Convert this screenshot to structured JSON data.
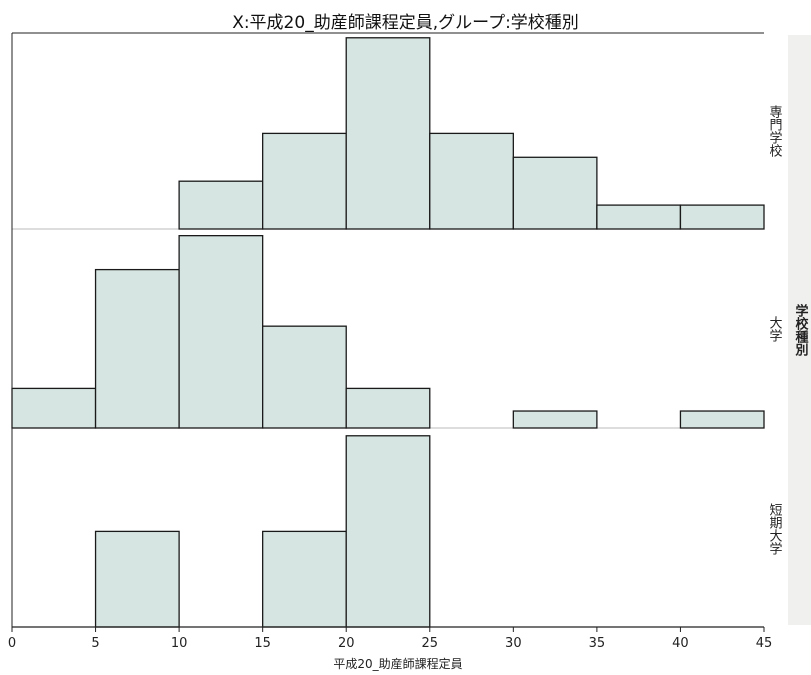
{
  "title": "X:平成20_助産師課程定員,グループ:学校種別",
  "group_label": "学校種別",
  "colors": {
    "bar_fill": "#d6e5e1",
    "bar_stroke": "#1a1a1a",
    "axis": "#222222",
    "background": "#ffffff"
  },
  "chart_data": {
    "type": "bar",
    "title": "X:平成20_助産師課程定員,グループ:学校種別",
    "xlabel": "平成20_助産師課程定員",
    "ylabel": "",
    "xlim": [
      0,
      45
    ],
    "x_ticks": [
      0,
      5,
      10,
      15,
      20,
      25,
      30,
      35,
      40,
      45
    ],
    "bin_width": 5,
    "bin_starts": [
      0,
      5,
      10,
      15,
      20,
      25,
      30,
      35,
      40
    ],
    "grid": false,
    "facet_label": "学校種別",
    "panels": [
      {
        "name": "専門学校",
        "values": [
          0,
          0,
          1,
          2,
          4,
          2,
          1.5,
          0.5,
          0.5
        ],
        "ylim": [
          0,
          4.1
        ]
      },
      {
        "name": "大学",
        "values": [
          0.7,
          2.8,
          3.4,
          1.8,
          0.7,
          0,
          0.3,
          0,
          0.3
        ],
        "ylim": [
          0,
          3.5
        ]
      },
      {
        "name": "短期大学",
        "values": [
          0,
          1,
          0,
          1,
          2,
          0,
          0,
          0,
          0
        ],
        "ylim": [
          0,
          2.05
        ]
      }
    ]
  }
}
